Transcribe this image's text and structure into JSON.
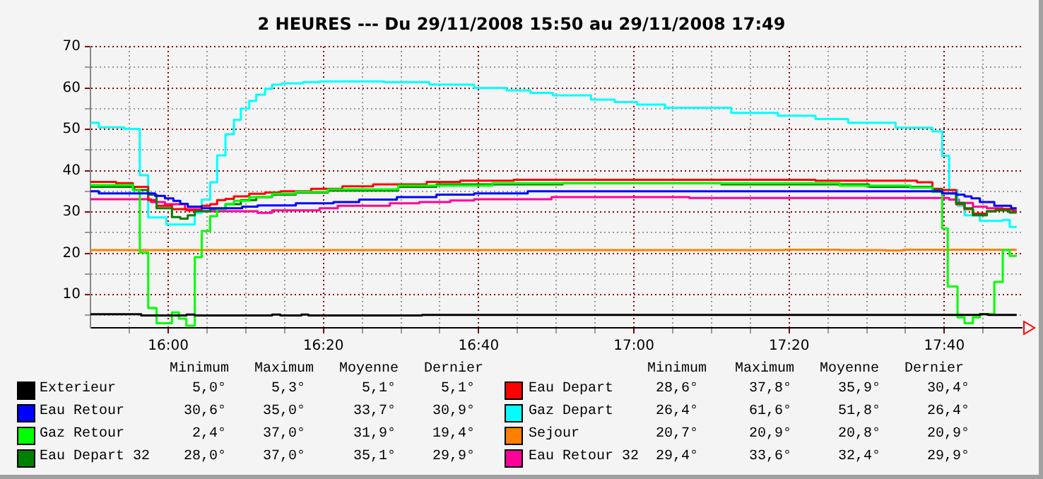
{
  "chart_data": {
    "type": "step",
    "title": "2 HEURES --- Du 29/11/2008 15:50 au 29/11/2008 17:49",
    "xlim": [
      15.833,
      17.833
    ],
    "xticks": [
      {
        "value": 15.9167,
        "label": null
      },
      {
        "value": 16,
        "label": "16:00"
      },
      {
        "value": 16.0833,
        "label": null
      },
      {
        "value": 16.1667,
        "label": null
      },
      {
        "value": 16.25,
        "label": null
      },
      {
        "value": 16.3333,
        "label": "16:20"
      },
      {
        "value": 16.4167,
        "label": null
      },
      {
        "value": 16.5,
        "label": null
      },
      {
        "value": 16.5833,
        "label": null
      },
      {
        "value": 16.6667,
        "label": "16:40"
      },
      {
        "value": 16.75,
        "label": null
      },
      {
        "value": 16.8333,
        "label": null
      },
      {
        "value": 16.9167,
        "label": null
      },
      {
        "value": 17,
        "label": "17:00"
      },
      {
        "value": 17.0833,
        "label": null
      },
      {
        "value": 17.1667,
        "label": null
      },
      {
        "value": 17.25,
        "label": null
      },
      {
        "value": 17.3333,
        "label": "17:20"
      },
      {
        "value": 17.4167,
        "label": null
      },
      {
        "value": 17.5,
        "label": null
      },
      {
        "value": 17.5833,
        "label": null
      },
      {
        "value": 17.6667,
        "label": "17:40"
      },
      {
        "value": 17.75,
        "label": null
      }
    ],
    "ylim": [
      2,
      70
    ],
    "yticks": [
      {
        "value": 5,
        "label": null
      },
      10,
      {
        "value": 15,
        "label": null
      },
      20,
      {
        "value": 25,
        "label": null
      },
      30,
      {
        "value": 35,
        "label": null
      },
      40,
      {
        "value": 45,
        "label": null
      },
      50,
      {
        "value": 55,
        "label": null
      },
      60,
      {
        "value": 65,
        "label": null
      },
      70
    ],
    "grid": true,
    "legend": "bottom",
    "marker": "none",
    "annotations": [
      "Minimum",
      "Maximum",
      "Moyenne",
      "Dernier",
      "Minimum",
      "Maximum",
      "Moyenne",
      "Dernier",
      "5,0°",
      "5,3°",
      "5,1°",
      "5,1°",
      "30,6°",
      "35,0°",
      "33,7°",
      "30,9°",
      "2,4°",
      "37,0°",
      "31,9°",
      "19,4°",
      "28,0°",
      "37,0°",
      "35,1°",
      "29,9°",
      "28,6°",
      "37,8°",
      "35,9°",
      "30,4°",
      "26,4°",
      "61,6°",
      "51,8°",
      "26,4°",
      "20,7°",
      "20,9°",
      "20,8°",
      "20,9°",
      "29,4°",
      "33,6°",
      "32,4°",
      "29,9°"
    ],
    "series": [
      {
        "name": "Exterieur",
        "color": "#000000",
        "x": [
          15.833,
          15.942,
          16.039,
          16.057,
          16.223,
          16.241,
          16.286,
          16.301,
          16.545,
          17.743,
          17.761,
          17.822
        ],
        "values": [
          5.3,
          5.0,
          5.2,
          5.0,
          5.2,
          5.0,
          5.2,
          5.0,
          5.1,
          5.3,
          5.1,
          5.1
        ]
      },
      {
        "name": "Eau Retour",
        "color": "#0000ff",
        "x": [
          15.833,
          15.851,
          15.972,
          15.993,
          16.011,
          16.026,
          16.042,
          16.072,
          16.159,
          16.192,
          16.274,
          16.355,
          16.41,
          16.491,
          16.576,
          16.657,
          16.772,
          17.662,
          17.692,
          17.71,
          17.725,
          17.743,
          17.774,
          17.81,
          17.822
        ],
        "values": [
          35.0,
          34.5,
          33.9,
          33.3,
          32.7,
          32.0,
          31.3,
          30.9,
          31.3,
          31.6,
          32.1,
          32.4,
          33.0,
          33.6,
          34.2,
          34.5,
          35.0,
          34.5,
          34.2,
          33.8,
          33.3,
          32.4,
          31.5,
          30.9,
          30.9
        ]
      },
      {
        "name": "Gaz Retour",
        "color": "#00ff00",
        "x": [
          15.833,
          15.924,
          15.939,
          15.957,
          15.975,
          16.008,
          16.023,
          16.039,
          16.057,
          16.072,
          16.09,
          16.105,
          16.123,
          16.141,
          16.174,
          16.223,
          16.274,
          16.343,
          16.494,
          16.696,
          17.442,
          17.593,
          17.641,
          17.662,
          17.674,
          17.695,
          17.71,
          17.728,
          17.743,
          17.774,
          17.792,
          17.807,
          17.822
        ],
        "values": [
          36.5,
          35.3,
          20.2,
          6.8,
          3.1,
          5.7,
          4.2,
          2.5,
          19.1,
          25.4,
          29.0,
          30.7,
          31.9,
          32.7,
          33.6,
          34.4,
          34.9,
          35.5,
          36.4,
          37.0,
          36.4,
          35.9,
          34.9,
          26.0,
          12.0,
          4.5,
          3.1,
          4.5,
          5.3,
          13.1,
          20.8,
          19.4,
          19.4
        ]
      },
      {
        "name": "Eau Depart 32",
        "color": "#008000",
        "x": [
          15.833,
          15.927,
          15.957,
          15.975,
          16.008,
          16.026,
          16.042,
          16.057,
          16.09,
          16.123,
          16.156,
          16.189,
          16.223,
          16.274,
          16.343,
          16.494,
          16.576,
          16.847,
          17.188,
          17.505,
          17.641,
          17.662,
          17.692,
          17.71,
          17.728,
          17.758,
          17.777,
          17.807,
          17.822
        ],
        "values": [
          36.1,
          35.3,
          34.2,
          30.9,
          28.8,
          28.4,
          29.2,
          30.2,
          30.7,
          31.9,
          32.9,
          33.6,
          34.2,
          34.7,
          35.2,
          36.1,
          36.7,
          37.0,
          36.7,
          36.1,
          35.3,
          34.5,
          32.2,
          30.9,
          29.2,
          30.2,
          30.4,
          29.9,
          29.9
        ]
      },
      {
        "name": "Eau Depart",
        "color": "#ff0000",
        "x": [
          15.833,
          15.888,
          15.924,
          15.957,
          15.975,
          16.008,
          16.039,
          16.072,
          16.09,
          16.105,
          16.123,
          16.141,
          16.174,
          16.208,
          16.241,
          16.307,
          16.374,
          16.44,
          16.555,
          16.627,
          16.742,
          17.39,
          17.608,
          17.641,
          17.662,
          17.692,
          17.71,
          17.728,
          17.758,
          17.777,
          17.813,
          17.822
        ],
        "values": [
          37.3,
          37.0,
          36.1,
          32.9,
          31.5,
          30.7,
          30.4,
          31.5,
          31.9,
          32.9,
          33.2,
          33.8,
          34.4,
          34.7,
          35.0,
          35.6,
          36.2,
          36.7,
          37.3,
          37.6,
          37.8,
          37.6,
          37.2,
          35.6,
          35.3,
          31.9,
          30.7,
          29.6,
          30.2,
          30.7,
          30.4,
          30.4
        ]
      },
      {
        "name": "Gaz Depart",
        "color": "#00ffff",
        "x": [
          15.833,
          15.851,
          15.906,
          15.939,
          15.957,
          15.996,
          16.057,
          16.072,
          16.09,
          16.105,
          16.123,
          16.141,
          16.156,
          16.174,
          16.189,
          16.208,
          16.223,
          16.244,
          16.289,
          16.325,
          16.464,
          16.561,
          16.657,
          16.727,
          16.778,
          16.826,
          16.908,
          16.959,
          17.007,
          17.067,
          17.209,
          17.309,
          17.39,
          17.46,
          17.562,
          17.641,
          17.662,
          17.677,
          17.695,
          17.71,
          17.743,
          17.792,
          17.807,
          17.822
        ],
        "values": [
          51.6,
          50.5,
          50.1,
          38.9,
          28.7,
          27.0,
          29.8,
          33.0,
          37.2,
          43.7,
          48.8,
          52.3,
          55.0,
          56.9,
          58.4,
          59.8,
          60.8,
          61.1,
          61.4,
          61.6,
          61.4,
          60.8,
          60.0,
          59.4,
          58.8,
          58.2,
          57.2,
          56.6,
          56.0,
          55.2,
          54.0,
          53.3,
          52.5,
          51.6,
          50.4,
          49.5,
          43.6,
          35.3,
          31.5,
          29.2,
          27.9,
          28.1,
          26.4,
          26.4
        ]
      },
      {
        "name": "Sejour",
        "color": "#ff8000",
        "x": [
          15.833,
          17.324,
          17.442,
          17.541,
          17.578,
          17.822
        ],
        "values": [
          20.8,
          20.9,
          20.8,
          20.7,
          20.9,
          20.9
        ]
      },
      {
        "name": "Eau Retour 32",
        "color": "#ff0099",
        "x": [
          15.833,
          15.963,
          15.993,
          16.036,
          16.072,
          16.192,
          16.223,
          16.325,
          16.364,
          16.476,
          16.539,
          16.606,
          16.657,
          16.823,
          17.119,
          17.677,
          17.698,
          17.728,
          17.758,
          17.792,
          17.807,
          17.822
        ],
        "values": [
          33.1,
          32.4,
          31.9,
          30.7,
          30.2,
          29.8,
          30.4,
          30.9,
          31.5,
          32.1,
          32.4,
          32.8,
          33.1,
          33.6,
          33.4,
          33.0,
          32.2,
          31.3,
          30.9,
          30.7,
          29.9,
          29.9
        ]
      }
    ]
  }
}
